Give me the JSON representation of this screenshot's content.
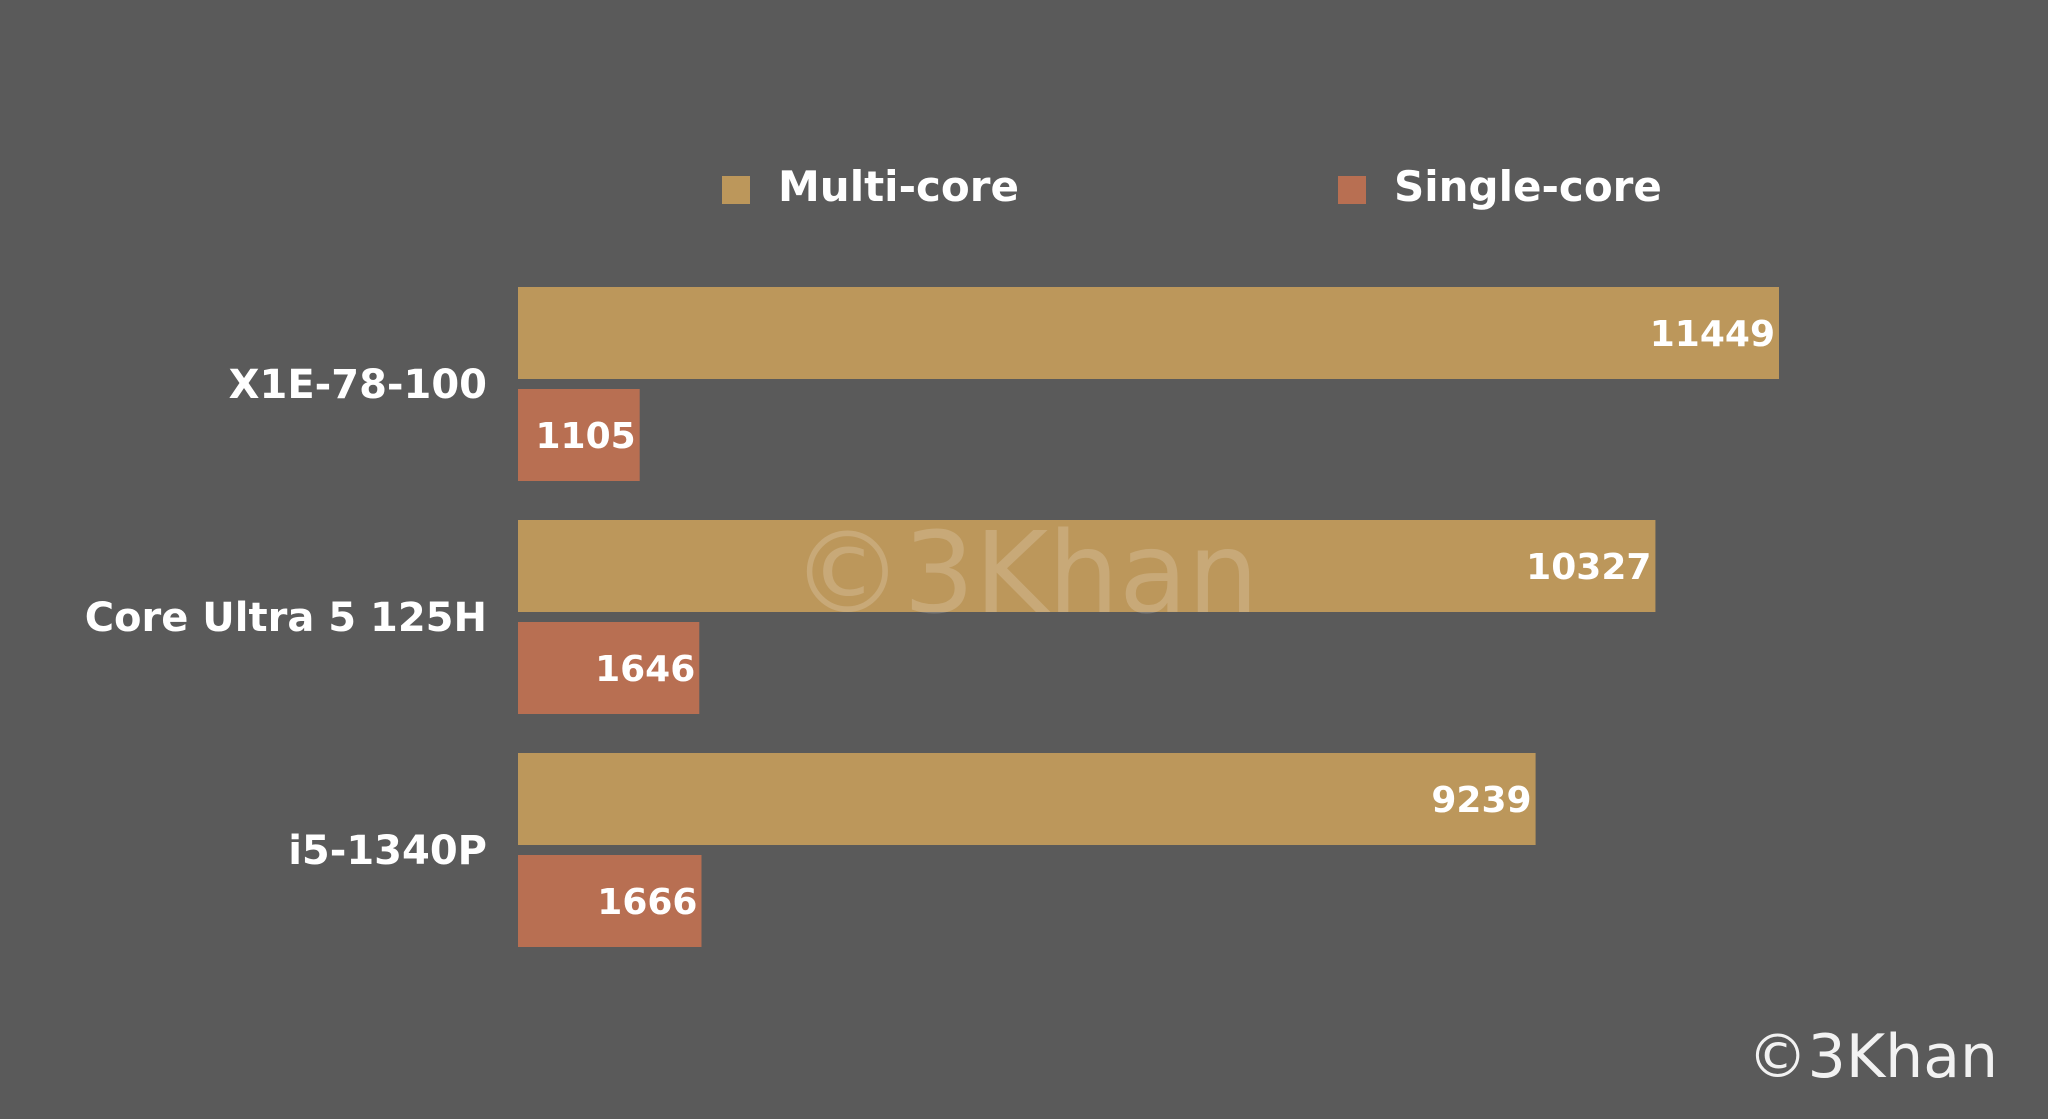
{
  "chart_data": {
    "type": "bar",
    "orientation": "horizontal",
    "title": "",
    "xlabel": "",
    "ylabel": "",
    "categories": [
      "X1E-78-100",
      "Core Ultra 5 125H",
      "i5-1340P"
    ],
    "series": [
      {
        "name": "Multi-core",
        "color": "#bc975b",
        "values": [
          11449,
          10327,
          9239
        ]
      },
      {
        "name": "Single-core",
        "color": "#b86f52",
        "values": [
          1105,
          1646,
          1666
        ]
      }
    ],
    "xlim": [
      0,
      12000
    ],
    "grid": false,
    "legend_position": "top",
    "data_labels": true
  },
  "watermark": {
    "center_text": "©3Khan",
    "corner_text": "©3Khan"
  }
}
